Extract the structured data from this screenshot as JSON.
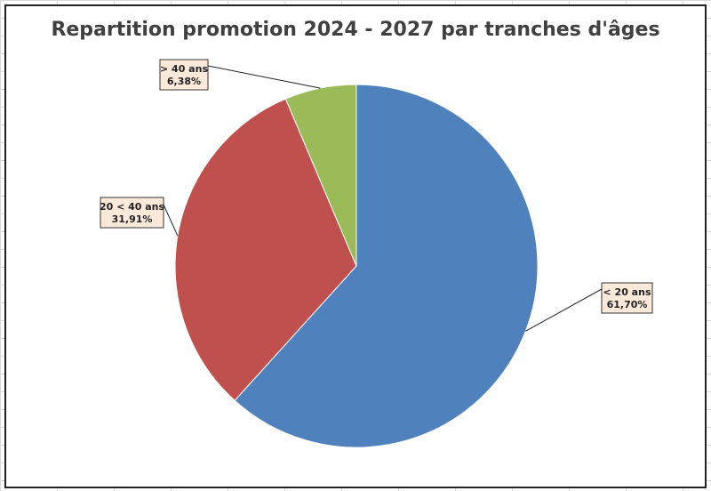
{
  "chart_data": {
    "type": "pie",
    "title": "Repartition promotion 2024 - 2027 par tranches d'âges",
    "slices": [
      {
        "label": "< 20 ans",
        "value": 61.7,
        "display": "61,70%",
        "color": "#4f81bd"
      },
      {
        "label": "20 < 40 ans",
        "value": 31.91,
        "display": "31,91%",
        "color": "#c0504d"
      },
      {
        "label": "> 40 ans",
        "value": 6.38,
        "display": "6,38%",
        "color": "#9bbb59"
      }
    ],
    "legend": "none"
  }
}
